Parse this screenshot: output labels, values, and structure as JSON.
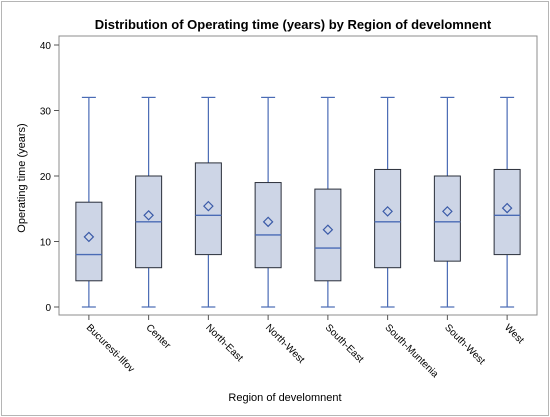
{
  "chart_data": {
    "type": "boxplot",
    "title": "Distribution of Operating time (years) by Region of develomnent",
    "xlabel": "Region of develomnent",
    "ylabel": "Operating time (years)",
    "ylim": [
      0,
      40
    ],
    "yticks": [
      0,
      10,
      20,
      30,
      40
    ],
    "grid": false,
    "legend": "none",
    "colors": {
      "box_fill": "#cdd5e6",
      "box_stroke": "#2a2f3a",
      "whisker": "#4a6bb5",
      "median": "#4a6bb5",
      "mean_marker": "#3b5ba8"
    },
    "categories": [
      "Bucuresti-Ilfov",
      "Center",
      "North-East",
      "North-West",
      "South-East",
      "South-Muntenia",
      "South-West",
      "West"
    ],
    "series": [
      {
        "category": "Bucuresti-Ilfov",
        "min": 0,
        "q1": 4,
        "median": 8,
        "q3": 16,
        "max": 32,
        "mean": 10.7
      },
      {
        "category": "Center",
        "min": 0,
        "q1": 6,
        "median": 13,
        "q3": 20,
        "max": 32,
        "mean": 14.0
      },
      {
        "category": "North-East",
        "min": 0,
        "q1": 8,
        "median": 14,
        "q3": 22,
        "max": 32,
        "mean": 15.4
      },
      {
        "category": "North-West",
        "min": 0,
        "q1": 6,
        "median": 11,
        "q3": 19,
        "max": 32,
        "mean": 13.0
      },
      {
        "category": "South-East",
        "min": 0,
        "q1": 4,
        "median": 9,
        "q3": 18,
        "max": 32,
        "mean": 11.8
      },
      {
        "category": "South-Muntenia",
        "min": 0,
        "q1": 6,
        "median": 13,
        "q3": 21,
        "max": 32,
        "mean": 14.6
      },
      {
        "category": "South-West",
        "min": 0,
        "q1": 7,
        "median": 13,
        "q3": 20,
        "max": 32,
        "mean": 14.6
      },
      {
        "category": "West",
        "min": 0,
        "q1": 8,
        "median": 14,
        "q3": 21,
        "max": 32,
        "mean": 15.1
      }
    ]
  }
}
